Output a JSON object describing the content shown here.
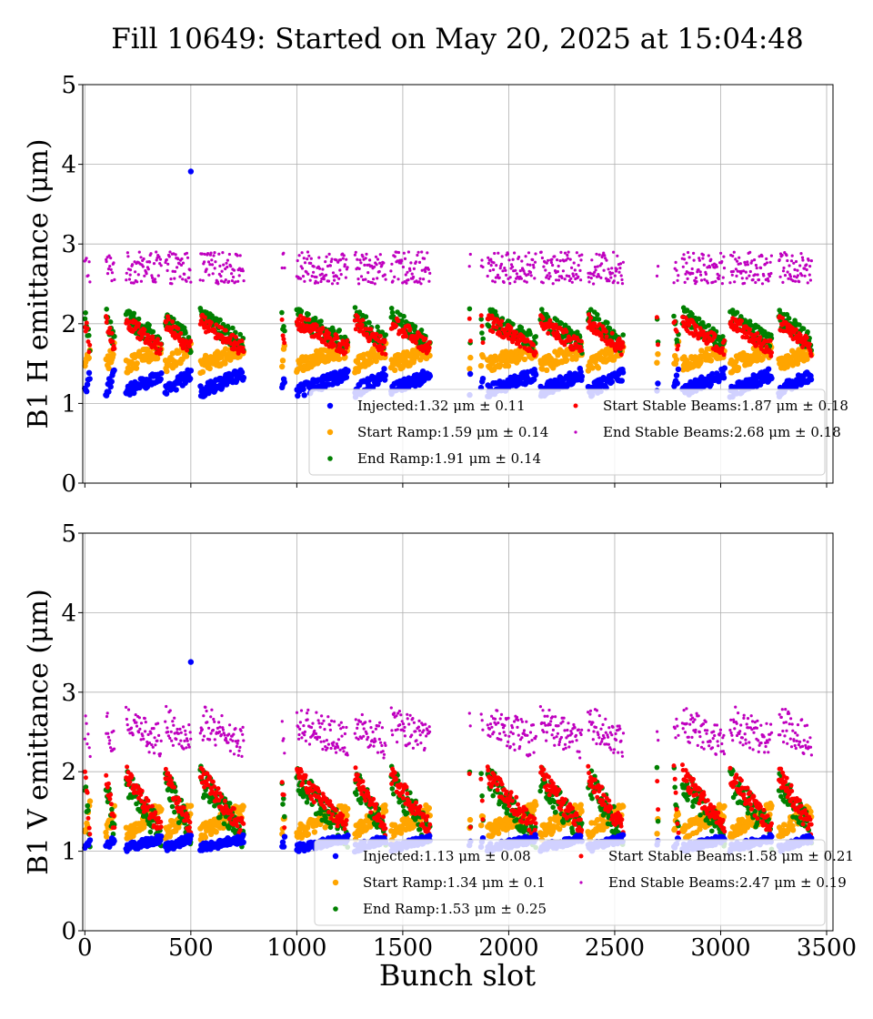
{
  "figure": {
    "title": "Fill 10649: Started on May 20, 2025 at 15:04:48",
    "xlabel": "Bunch slot"
  },
  "chart_data": [
    {
      "type": "scatter",
      "ylabel": "B1 H emittance (μm)",
      "xlim": [
        -10,
        3530
      ],
      "ylim": [
        0,
        5
      ],
      "xticks": [
        0,
        500,
        1000,
        1500,
        2000,
        2500,
        3000,
        3500
      ],
      "yticks": [
        0,
        1,
        2,
        3,
        4,
        5
      ],
      "grid": true,
      "legend_position": "lower-right",
      "trains": [
        [
          0,
          24
        ],
        [
          100,
          140
        ],
        [
          195,
          360
        ],
        [
          380,
          500
        ],
        [
          545,
          750
        ],
        [
          930,
          945
        ],
        [
          1000,
          1240
        ],
        [
          1275,
          1420
        ],
        [
          1445,
          1630
        ],
        [
          1815,
          1820
        ],
        [
          1870,
          1880
        ],
        [
          1900,
          2130
        ],
        [
          2150,
          2345
        ],
        [
          2375,
          2540
        ],
        [
          2700,
          2705
        ],
        [
          2780,
          2800
        ],
        [
          2820,
          3020
        ],
        [
          3045,
          3240
        ],
        [
          3275,
          3430
        ]
      ],
      "outliers": [
        {
          "series": "Injected",
          "x": 500,
          "y": 3.91
        }
      ],
      "series": [
        {
          "name": "Injected",
          "mean": 1.32,
          "std": 0.11,
          "label": "Injected:1.32 μm ± 0.11",
          "color": "#0000ff",
          "base": 1.26,
          "slope": 0.22,
          "noise": 0.08
        },
        {
          "name": "Start Ramp",
          "mean": 1.59,
          "std": 0.14,
          "label": "Start Ramp:1.59 μm ± 0.14",
          "color": "#ffa500",
          "base": 1.58,
          "slope": 0.2,
          "noise": 0.1
        },
        {
          "name": "End Ramp",
          "mean": 1.91,
          "std": 0.14,
          "label": "End Ramp:1.91 μm ± 0.14",
          "color": "#008000",
          "base": 1.92,
          "slope": -0.35,
          "noise": 0.12
        },
        {
          "name": "Start Stable Beams",
          "mean": 1.87,
          "std": 0.18,
          "label": "Start Stable Beams:1.87 μm ± 0.18",
          "color": "#ff0000",
          "base": 1.86,
          "slope": -0.35,
          "noise": 0.1
        },
        {
          "name": "End Stable Beams",
          "mean": 2.68,
          "std": 0.18,
          "label": "End Stable Beams:2.68 μm ± 0.18",
          "color": "#bf00bf",
          "base": 2.7,
          "slope": 0.0,
          "noise": 0.2
        }
      ]
    },
    {
      "type": "scatter",
      "ylabel": "B1 V emittance (μm)",
      "xlim": [
        -10,
        3530
      ],
      "ylim": [
        0,
        5
      ],
      "xticks": [
        0,
        500,
        1000,
        1500,
        2000,
        2500,
        3000,
        3500
      ],
      "yticks": [
        0,
        1,
        2,
        3,
        4,
        5
      ],
      "grid": true,
      "legend_position": "lower-right",
      "trains": [
        [
          0,
          24
        ],
        [
          100,
          140
        ],
        [
          195,
          360
        ],
        [
          380,
          500
        ],
        [
          545,
          750
        ],
        [
          930,
          945
        ],
        [
          1000,
          1240
        ],
        [
          1275,
          1420
        ],
        [
          1445,
          1630
        ],
        [
          1815,
          1820
        ],
        [
          1870,
          1880
        ],
        [
          1900,
          2130
        ],
        [
          2150,
          2345
        ],
        [
          2375,
          2540
        ],
        [
          2700,
          2705
        ],
        [
          2780,
          2800
        ],
        [
          2820,
          3020
        ],
        [
          3045,
          3240
        ],
        [
          3275,
          3430
        ]
      ],
      "outliers": [
        {
          "series": "Injected",
          "x": 500,
          "y": 3.38
        }
      ],
      "series": [
        {
          "name": "Injected",
          "mean": 1.13,
          "std": 0.08,
          "label": "Injected:1.13 μm ± 0.08",
          "color": "#0000ff",
          "base": 1.1,
          "slope": 0.12,
          "noise": 0.05
        },
        {
          "name": "Start Ramp",
          "mean": 1.34,
          "std": 0.1,
          "label": "Start Ramp:1.34 μm ± 0.1",
          "color": "#ffa500",
          "base": 1.38,
          "slope": 0.3,
          "noise": 0.1
        },
        {
          "name": "End Ramp",
          "mean": 1.53,
          "std": 0.25,
          "label": "End Ramp:1.53 μm ± 0.25",
          "color": "#008000",
          "base": 1.55,
          "slope": -0.7,
          "noise": 0.18
        },
        {
          "name": "Start Stable Beams",
          "mean": 1.58,
          "std": 0.21,
          "label": "Start Stable Beams:1.58 μm ± 0.21",
          "color": "#ff0000",
          "base": 1.62,
          "slope": -0.7,
          "noise": 0.12
        },
        {
          "name": "End Stable Beams",
          "mean": 2.47,
          "std": 0.19,
          "label": "End Stable Beams:2.47 μm ± 0.19",
          "color": "#bf00bf",
          "base": 2.5,
          "slope": -0.25,
          "noise": 0.22
        }
      ]
    }
  ]
}
